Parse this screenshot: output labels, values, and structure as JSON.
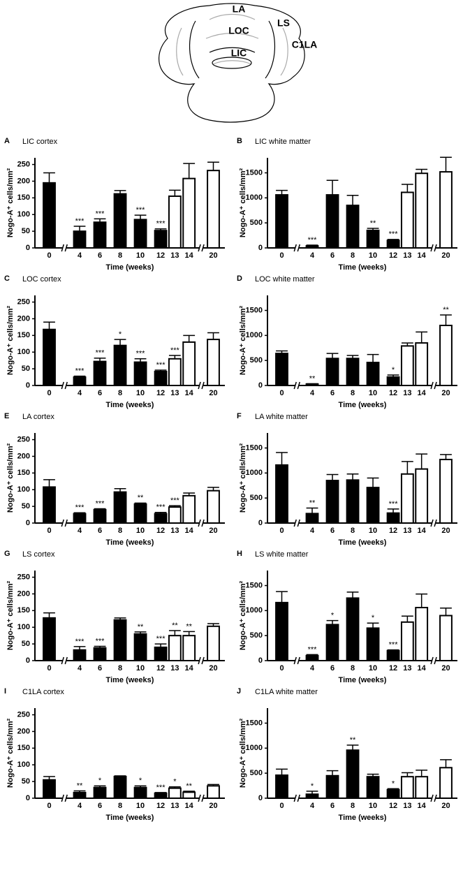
{
  "diagram": {
    "labels": [
      "LA",
      "LOC",
      "LS",
      "C1LA",
      "LIC"
    ]
  },
  "chart_data": [
    {
      "type": "bar",
      "letter": "A",
      "title": "LIC cortex",
      "xlabel": "Time (weeks)",
      "ylabel": "Nogo-A⁺ cells/mm²",
      "categories": [
        "0",
        "4",
        "6",
        "8",
        "10",
        "12",
        "13",
        "14",
        "20"
      ],
      "values": [
        195,
        50,
        77,
        162,
        85,
        52,
        155,
        208,
        232
      ],
      "errors": [
        30,
        15,
        10,
        10,
        13,
        5,
        18,
        45,
        25
      ],
      "annotations": [
        null,
        "***",
        "***",
        null,
        "***",
        "***",
        null,
        null,
        null
      ],
      "fills": [
        "#000",
        "#000",
        "#000",
        "#000",
        "#000",
        "#000",
        "#fff",
        "#fff",
        "#fff"
      ],
      "ylim": [
        0,
        270
      ],
      "yticks": [
        0,
        50,
        100,
        150,
        200,
        250
      ]
    },
    {
      "type": "bar",
      "letter": "B",
      "title": "LIC white matter",
      "xlabel": "Time (weeks)",
      "ylabel": "Nogo-A⁺ cells/mm²",
      "categories": [
        "0",
        "4",
        "6",
        "8",
        "10",
        "12",
        "13",
        "14",
        "20"
      ],
      "values": [
        1060,
        40,
        1060,
        850,
        350,
        150,
        1110,
        1490,
        1520
      ],
      "errors": [
        90,
        15,
        290,
        200,
        40,
        20,
        160,
        80,
        290
      ],
      "annotations": [
        null,
        "***",
        null,
        null,
        "**",
        "***",
        null,
        null,
        null
      ],
      "fills": [
        "#000",
        "#000",
        "#000",
        "#000",
        "#000",
        "#000",
        "#fff",
        "#fff",
        "#fff"
      ],
      "ylim": [
        0,
        1800
      ],
      "yticks": [
        0,
        500,
        1000,
        1500
      ]
    },
    {
      "type": "bar",
      "letter": "C",
      "title": "LOC cortex",
      "xlabel": "Time (weeks)",
      "ylabel": "Nogo-A⁺ cells/mm²",
      "categories": [
        "0",
        "4",
        "6",
        "8",
        "10",
        "12",
        "13",
        "14",
        "20"
      ],
      "values": [
        168,
        25,
        72,
        120,
        70,
        42,
        80,
        130,
        138
      ],
      "errors": [
        22,
        3,
        10,
        18,
        10,
        4,
        10,
        20,
        20
      ],
      "annotations": [
        null,
        "***",
        "***",
        "*",
        "***",
        "***",
        "***",
        null,
        null
      ],
      "fills": [
        "#000",
        "#000",
        "#000",
        "#000",
        "#000",
        "#000",
        "#fff",
        "#fff",
        "#fff"
      ],
      "ylim": [
        0,
        270
      ],
      "yticks": [
        0,
        50,
        100,
        150,
        200,
        250
      ]
    },
    {
      "type": "bar",
      "letter": "D",
      "title": "LOC white matter",
      "xlabel": "Time (weeks)",
      "ylabel": "Nogo-A⁺ cells/mm²",
      "categories": [
        "0",
        "4",
        "6",
        "8",
        "10",
        "12",
        "13",
        "14",
        "20"
      ],
      "values": [
        640,
        30,
        540,
        540,
        460,
        170,
        790,
        850,
        1200
      ],
      "errors": [
        50,
        5,
        100,
        60,
        160,
        40,
        60,
        220,
        210
      ],
      "annotations": [
        null,
        "**",
        null,
        null,
        null,
        "*",
        null,
        null,
        "**"
      ],
      "fills": [
        "#000",
        "#000",
        "#000",
        "#000",
        "#000",
        "#000",
        "#fff",
        "#fff",
        "#fff"
      ],
      "ylim": [
        0,
        1800
      ],
      "yticks": [
        0,
        500,
        1000,
        1500
      ]
    },
    {
      "type": "bar",
      "letter": "E",
      "title": "LA cortex",
      "xlabel": "Time (weeks)",
      "ylabel": "Nogo-A⁺ cells/mm²",
      "categories": [
        "0",
        "4",
        "6",
        "8",
        "10",
        "12",
        "13",
        "14",
        "20"
      ],
      "values": [
        108,
        28,
        40,
        93,
        57,
        28,
        48,
        82,
        97
      ],
      "errors": [
        22,
        3,
        3,
        10,
        3,
        4,
        4,
        8,
        10
      ],
      "annotations": [
        null,
        "***",
        "***",
        null,
        "**",
        "***",
        "***",
        null,
        null
      ],
      "fills": [
        "#000",
        "#000",
        "#000",
        "#000",
        "#000",
        "#000",
        "#fff",
        "#fff",
        "#fff"
      ],
      "ylim": [
        0,
        270
      ],
      "yticks": [
        0,
        50,
        100,
        150,
        200,
        250
      ]
    },
    {
      "type": "bar",
      "letter": "F",
      "title": "LA white matter",
      "xlabel": "Time (weeks)",
      "ylabel": "Nogo-A⁺ cells/mm²",
      "categories": [
        "0",
        "4",
        "6",
        "8",
        "10",
        "12",
        "13",
        "14",
        "20"
      ],
      "values": [
        1160,
        190,
        850,
        860,
        710,
        200,
        980,
        1080,
        1270
      ],
      "errors": [
        250,
        110,
        120,
        120,
        190,
        80,
        250,
        300,
        100
      ],
      "annotations": [
        null,
        "**",
        null,
        null,
        null,
        "***",
        null,
        null,
        null
      ],
      "fills": [
        "#000",
        "#000",
        "#000",
        "#000",
        "#000",
        "#000",
        "#fff",
        "#fff",
        "#fff"
      ],
      "ylim": [
        0,
        1800
      ],
      "yticks": [
        0,
        500,
        1000,
        1500
      ]
    },
    {
      "type": "bar",
      "letter": "G",
      "title": "LS cortex",
      "xlabel": "Time (weeks)",
      "ylabel": "Nogo-A⁺ cells/mm²",
      "categories": [
        "0",
        "4",
        "6",
        "8",
        "10",
        "12",
        "13",
        "14",
        "20"
      ],
      "values": [
        128,
        32,
        38,
        122,
        80,
        40,
        75,
        75,
        103
      ],
      "errors": [
        15,
        10,
        5,
        6,
        6,
        10,
        15,
        12,
        8
      ],
      "annotations": [
        null,
        "***",
        "***",
        null,
        "**",
        "***",
        "**",
        "**",
        null
      ],
      "fills": [
        "#000",
        "#000",
        "#000",
        "#000",
        "#000",
        "#000",
        "#fff",
        "#fff",
        "#fff"
      ],
      "ylim": [
        0,
        270
      ],
      "yticks": [
        0,
        50,
        100,
        150,
        200,
        250
      ]
    },
    {
      "type": "bar",
      "letter": "H",
      "title": "LS white matter",
      "xlabel": "Time (weeks)",
      "ylabel": "Nogo-A⁺ cells/mm²",
      "categories": [
        "0",
        "4",
        "6",
        "8",
        "10",
        "12",
        "13",
        "14",
        "20"
      ],
      "values": [
        1160,
        100,
        720,
        1250,
        650,
        200,
        770,
        1060,
        900
      ],
      "errors": [
        220,
        20,
        80,
        120,
        100,
        15,
        120,
        270,
        150
      ],
      "annotations": [
        null,
        "***",
        "*",
        null,
        "*",
        "***",
        null,
        null,
        null
      ],
      "fills": [
        "#000",
        "#000",
        "#000",
        "#000",
        "#000",
        "#000",
        "#fff",
        "#fff",
        "#fff"
      ],
      "ylim": [
        0,
        1800
      ],
      "yticks": [
        0,
        500,
        1000,
        1500
      ]
    },
    {
      "type": "bar",
      "letter": "I",
      "title": "C1LA cortex",
      "xlabel": "Time (weeks)",
      "ylabel": "Nogo-A⁺ cells/mm²",
      "categories": [
        "0",
        "4",
        "6",
        "8",
        "10",
        "12",
        "13",
        "14",
        "20"
      ],
      "values": [
        55,
        17,
        32,
        65,
        32,
        15,
        30,
        18,
        37
      ],
      "errors": [
        10,
        5,
        5,
        2,
        5,
        2,
        4,
        3,
        4
      ],
      "annotations": [
        null,
        "**",
        "*",
        null,
        "*",
        "***",
        "*",
        "**",
        null
      ],
      "fills": [
        "#000",
        "#000",
        "#000",
        "#000",
        "#000",
        "#000",
        "#fff",
        "#fff",
        "#fff"
      ],
      "ylim": [
        0,
        270
      ],
      "yticks": [
        0,
        50,
        100,
        150,
        200,
        250
      ]
    },
    {
      "type": "bar",
      "letter": "J",
      "title": "C1LA white matter",
      "xlabel": "Time (weeks)",
      "ylabel": "Nogo-A⁺ cells/mm²",
      "categories": [
        "0",
        "4",
        "6",
        "8",
        "10",
        "12",
        "13",
        "14",
        "20"
      ],
      "values": [
        460,
        80,
        450,
        960,
        430,
        170,
        430,
        430,
        610
      ],
      "errors": [
        120,
        60,
        100,
        100,
        50,
        20,
        80,
        130,
        160
      ],
      "annotations": [
        null,
        "*",
        null,
        "**",
        null,
        "*",
        null,
        null,
        null
      ],
      "fills": [
        "#000",
        "#000",
        "#000",
        "#000",
        "#000",
        "#000",
        "#fff",
        "#fff",
        "#fff"
      ],
      "ylim": [
        0,
        1800
      ],
      "yticks": [
        0,
        500,
        1000,
        1500
      ]
    }
  ]
}
